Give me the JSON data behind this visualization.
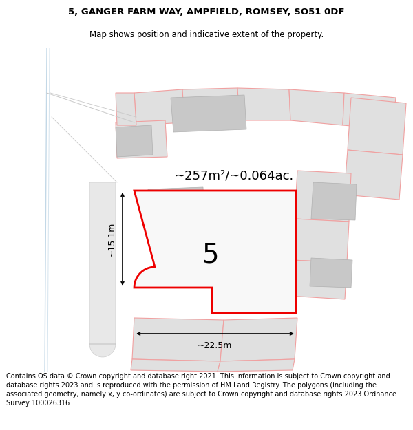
{
  "title_line1": "5, GANGER FARM WAY, AMPFIELD, ROMSEY, SO51 0DF",
  "title_line2": "Map shows position and indicative extent of the property.",
  "footer_text": "Contains OS data © Crown copyright and database right 2021. This information is subject to Crown copyright and database rights 2023 and is reproduced with the permission of HM Land Registry. The polygons (including the associated geometry, namely x, y co-ordinates) are subject to Crown copyright and database rights 2023 Ordnance Survey 100026316.",
  "area_label": "~257m²/~0.064ac.",
  "width_label": "~22.5m",
  "height_label": "~15.1m",
  "plot_number": "5",
  "bg_color": "#f0f0f0",
  "red_color": "#ee0000",
  "pink_color": "#f0a0a0",
  "blue_color": "#88aacc",
  "gray_fill": "#d0d0d0",
  "bldg_color": "#c8c8c8",
  "white_color": "#ffffff"
}
